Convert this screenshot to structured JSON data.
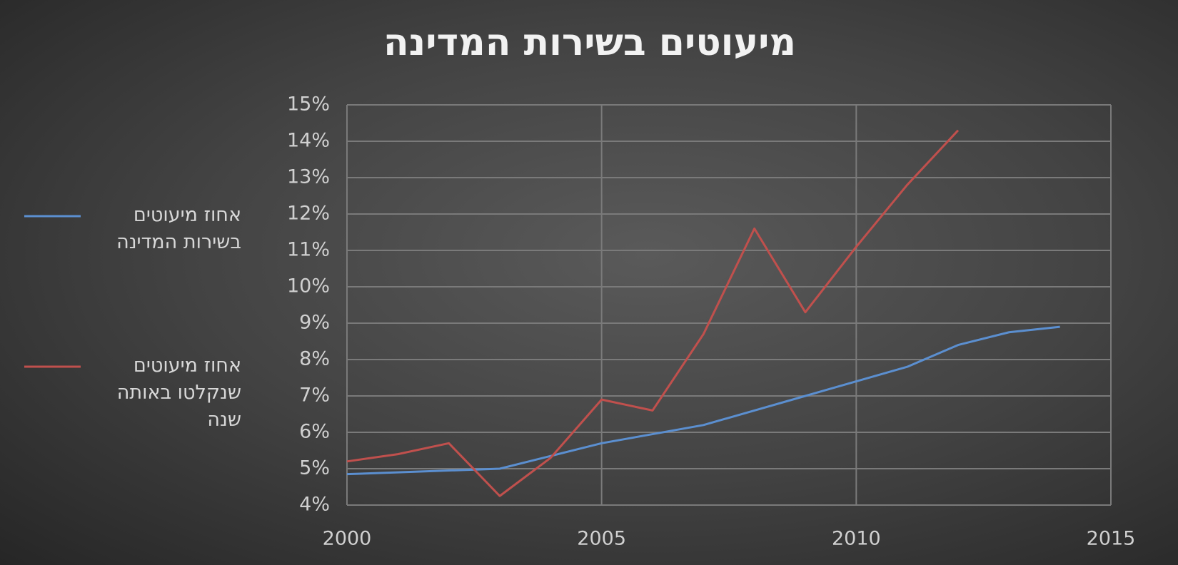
{
  "chart_data": {
    "type": "line",
    "title": "מיעוטים בשירות המדינה",
    "x": [
      2000,
      2001,
      2002,
      2003,
      2004,
      2005,
      2006,
      2007,
      2008,
      2009,
      2010,
      2011,
      2012,
      2013,
      2014
    ],
    "series": [
      {
        "name": "אחוז מיעוטים בשירות המדינה",
        "color": "#5b8fd0",
        "values": [
          4.85,
          4.9,
          4.95,
          5.0,
          5.35,
          5.7,
          5.95,
          6.2,
          6.6,
          7.0,
          7.4,
          7.8,
          8.4,
          8.75,
          8.9
        ]
      },
      {
        "name": "אחוז מיעוטים שנקלטו באותה שנה",
        "color": "#c0504d",
        "values": [
          5.2,
          5.4,
          5.7,
          4.25,
          5.3,
          6.9,
          6.6,
          8.7,
          11.6,
          9.3,
          11.1,
          12.8,
          14.3,
          null,
          null
        ]
      }
    ],
    "xlim": [
      2000,
      2015
    ],
    "xticks": [
      2000,
      2005,
      2010,
      2015
    ],
    "ylim": [
      4,
      15
    ],
    "yticks": [
      {
        "value": 4,
        "label": "4%"
      },
      {
        "value": 5,
        "label": "5%"
      },
      {
        "value": 6,
        "label": "6%"
      },
      {
        "value": 7,
        "label": "7%"
      },
      {
        "value": 8,
        "label": "8%"
      },
      {
        "value": 9,
        "label": "9%"
      },
      {
        "value": 10,
        "label": "10%"
      },
      {
        "value": 11,
        "label": "11%"
      },
      {
        "value": 12,
        "label": "12%"
      },
      {
        "value": 13,
        "label": "13%"
      },
      {
        "value": 14,
        "label": "14%"
      },
      {
        "value": 15,
        "label": "15%"
      }
    ],
    "grid": true,
    "legend": "left"
  }
}
